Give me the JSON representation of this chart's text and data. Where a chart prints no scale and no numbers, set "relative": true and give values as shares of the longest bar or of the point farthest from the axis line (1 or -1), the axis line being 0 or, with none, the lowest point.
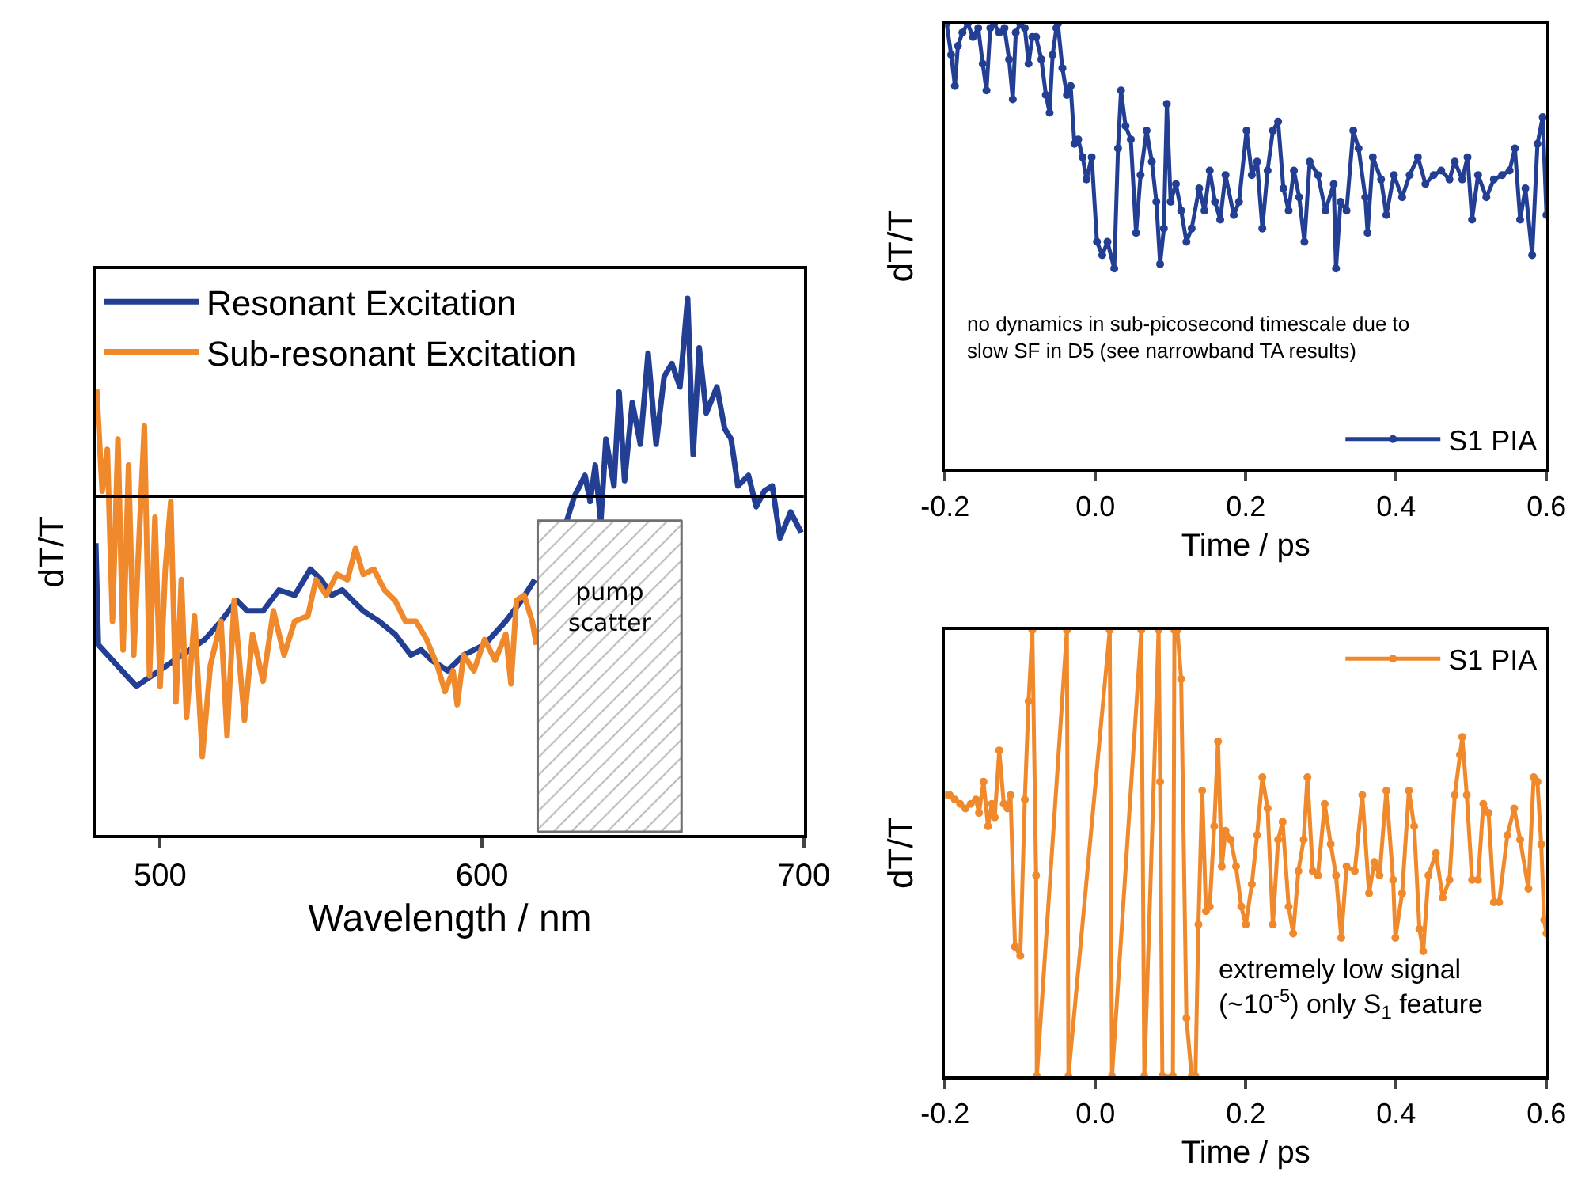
{
  "chart_data": [
    {
      "type": "line",
      "xlabel": "Wavelength / nm",
      "ylabel": "dT/T",
      "relative": true,
      "xlim": [
        480,
        700
      ],
      "xticks": [
        500,
        600,
        700
      ],
      "tick_labels": "x",
      "legend": "top left",
      "marker": "none",
      "x": [
        480.0,
        480.8,
        492.6,
        513.9,
        518.9,
        523.8,
        527.0,
        532.0,
        536.9,
        541.8,
        546.7,
        550.0,
        553.3,
        556.6,
        559.8,
        563.1,
        568.0,
        573.0,
        577.9,
        581.1,
        584.4,
        589.3,
        594.3,
        600.8,
        607.4,
        612.3,
        616.4,
        620.0,
        626.2,
        628.7,
        632.0,
        633.6,
        635.2,
        636.9,
        638.5,
        641.0,
        642.6,
        644.3,
        646.7,
        649.2,
        651.6,
        654.1,
        656.6,
        659.0,
        661.5,
        663.9,
        665.6,
        667.5,
        669.7,
        673.0,
        675.4,
        677.4,
        679.5,
        682.8,
        685.2,
        687.7,
        690.2,
        692.6,
        695.9,
        699.2
      ],
      "series": [
        {
          "name": "Resonant Excitation",
          "color": "#233f94",
          "values": [
            -0.18,
            -0.57,
            -0.73,
            -0.55,
            -0.48,
            -0.4,
            -0.44,
            -0.44,
            -0.36,
            -0.38,
            -0.28,
            -0.32,
            -0.38,
            -0.36,
            -0.4,
            -0.44,
            -0.48,
            -0.53,
            -0.61,
            -0.59,
            -0.63,
            -0.67,
            -0.61,
            -0.57,
            -0.48,
            -0.4,
            -0.32,
            null,
            -0.1,
            0.0,
            0.08,
            -0.02,
            0.12,
            -0.1,
            0.22,
            0.04,
            0.4,
            0.06,
            0.36,
            0.2,
            0.55,
            0.2,
            0.46,
            0.51,
            0.42,
            0.76,
            0.16,
            0.57,
            0.32,
            0.42,
            0.26,
            0.22,
            0.04,
            0.08,
            -0.04,
            0.02,
            0.04,
            -0.16,
            -0.06,
            -0.14
          ]
        },
        {
          "name": "Sub-resonant Excitation",
          "color": "#f0892b",
          "x": [
            480.3,
            482.0,
            483.6,
            485.2,
            486.9,
            488.5,
            490.2,
            491.8,
            493.4,
            495.1,
            496.7,
            498.4,
            500.0,
            501.6,
            503.3,
            504.9,
            506.6,
            508.2,
            510.7,
            513.1,
            515.6,
            518.9,
            520.8,
            523.0,
            526.2,
            528.7,
            532.0,
            535.2,
            538.5,
            541.8,
            545.9,
            548.4,
            551.6,
            554.9,
            558.2,
            560.7,
            563.1,
            566.4,
            569.7,
            573.0,
            576.2,
            579.5,
            582.8,
            586.1,
            588.5,
            591.0,
            592.3,
            594.3,
            597.5,
            600.8,
            604.1,
            607.4,
            609.0,
            610.7,
            613.1,
            615.6,
            616.9
          ],
          "values": [
            0.41,
            0.02,
            0.18,
            -0.48,
            0.22,
            -0.59,
            0.12,
            -0.61,
            -0.18,
            0.27,
            -0.69,
            -0.08,
            -0.73,
            -0.28,
            -0.02,
            -0.79,
            -0.32,
            -0.85,
            -0.46,
            -1.0,
            -0.65,
            -0.48,
            -0.92,
            -0.4,
            -0.86,
            -0.53,
            -0.71,
            -0.44,
            -0.61,
            -0.48,
            -0.46,
            -0.32,
            -0.38,
            -0.3,
            -0.32,
            -0.2,
            -0.3,
            -0.28,
            -0.36,
            -0.4,
            -0.48,
            -0.48,
            -0.55,
            -0.65,
            -0.75,
            -0.67,
            -0.8,
            -0.61,
            -0.67,
            -0.55,
            -0.63,
            -0.53,
            -0.72,
            -0.4,
            -0.38,
            -0.48,
            -0.57
          ]
        }
      ],
      "ref_lines": [
        {
          "axis": "y",
          "value": 0,
          "color": "#000000"
        }
      ],
      "bands": [
        {
          "axis": "x",
          "from": 617.3,
          "to": 662,
          "label": "pump\nscatter",
          "color": "#707070"
        }
      ]
    },
    {
      "type": "line",
      "xlabel": "Time / ps",
      "ylabel": "dT/T",
      "relative": true,
      "xlim": [
        -0.2,
        0.6
      ],
      "xticks": [
        {
          "value": -0.2,
          "label": "-0.2"
        },
        {
          "value": 0,
          "label": "0.0"
        },
        {
          "value": 0.2,
          "label": "0.2"
        },
        {
          "value": 0.4,
          "label": "0.4"
        },
        {
          "value": 0.6,
          "label": "0.6"
        }
      ],
      "tick_labels": "x",
      "legend": "bottom right",
      "marker": "circle",
      "annotations": [
        "no dynamics in sub-picosecond timescale due to\nslow SF in D5 (see narrowband TA results)"
      ],
      "x": [
        -0.198,
        -0.192,
        -0.187,
        -0.183,
        -0.177,
        -0.17,
        -0.163,
        -0.156,
        -0.15,
        -0.145,
        -0.14,
        -0.135,
        -0.128,
        -0.121,
        -0.115,
        -0.11,
        -0.106,
        -0.1,
        -0.094,
        -0.089,
        -0.084,
        -0.079,
        -0.072,
        -0.066,
        -0.061,
        -0.057,
        -0.052,
        -0.05,
        -0.044,
        -0.038,
        -0.033,
        -0.028,
        -0.023,
        -0.017,
        -0.012,
        -0.005,
        0.002,
        0.009,
        0.016,
        0.025,
        0.03,
        0.034,
        0.04,
        0.047,
        0.054,
        0.06,
        0.068,
        0.075,
        0.081,
        0.086,
        0.091,
        0.095,
        0.1,
        0.107,
        0.114,
        0.121,
        0.128,
        0.138,
        0.145,
        0.152,
        0.159,
        0.166,
        0.173,
        0.184,
        0.191,
        0.201,
        0.208,
        0.215,
        0.222,
        0.229,
        0.236,
        0.243,
        0.25,
        0.257,
        0.264,
        0.271,
        0.278,
        0.285,
        0.296,
        0.306,
        0.317,
        0.32,
        0.326,
        0.334,
        0.343,
        0.35,
        0.359,
        0.362,
        0.369,
        0.38,
        0.387,
        0.397,
        0.408,
        0.418,
        0.429,
        0.439,
        0.45,
        0.46,
        0.471,
        0.478,
        0.488,
        0.495,
        0.501,
        0.509,
        0.52,
        0.53,
        0.541,
        0.551,
        0.558,
        0.565,
        0.572,
        0.581,
        0.588,
        0.595,
        0.6
      ],
      "series": [
        {
          "name": "S1 PIA",
          "color": "#233f94",
          "values": [
            1.0,
            0.93,
            0.86,
            0.95,
            0.98,
            1.0,
            0.97,
            0.99,
            0.91,
            0.85,
            0.99,
            1.0,
            0.98,
            0.99,
            0.92,
            0.83,
            0.98,
            1.0,
            0.99,
            0.91,
            0.97,
            0.97,
            0.92,
            0.84,
            0.8,
            0.93,
            0.99,
            1.0,
            0.9,
            0.84,
            0.86,
            0.73,
            0.74,
            0.7,
            0.65,
            0.7,
            0.51,
            0.48,
            0.51,
            0.45,
            0.72,
            0.85,
            0.77,
            0.74,
            0.53,
            0.66,
            0.76,
            0.69,
            0.6,
            0.46,
            0.54,
            0.82,
            0.6,
            0.64,
            0.58,
            0.51,
            0.54,
            0.63,
            0.58,
            0.67,
            0.6,
            0.56,
            0.66,
            0.57,
            0.6,
            0.76,
            0.66,
            0.69,
            0.54,
            0.67,
            0.76,
            0.78,
            0.63,
            0.58,
            0.67,
            0.61,
            0.51,
            0.69,
            0.66,
            0.58,
            0.64,
            0.45,
            0.6,
            0.58,
            0.76,
            0.72,
            0.61,
            0.53,
            0.7,
            0.65,
            0.57,
            0.66,
            0.61,
            0.66,
            0.7,
            0.64,
            0.66,
            0.67,
            0.65,
            0.69,
            0.65,
            0.7,
            0.56,
            0.66,
            0.61,
            0.65,
            0.66,
            0.67,
            0.72,
            0.56,
            0.63,
            0.48,
            0.73,
            0.79,
            0.57
          ]
        }
      ]
    },
    {
      "type": "line",
      "xlabel": "Time / ps",
      "ylabel": "dT/T",
      "relative": true,
      "xlim": [
        -0.2,
        0.6
      ],
      "xticks": [
        {
          "value": -0.2,
          "label": "-0.2"
        },
        {
          "value": 0,
          "label": "0.0"
        },
        {
          "value": 0.2,
          "label": "0.2"
        },
        {
          "value": 0.4,
          "label": "0.4"
        },
        {
          "value": 0.6,
          "label": "0.6"
        }
      ],
      "tick_labels": "x",
      "legend": "top right",
      "marker": "circle",
      "annotations": [
        "extremely low signal\n(~10$^{-5}$) only S$_{1}$ feature"
      ],
      "x": [
        -0.2,
        -0.194,
        -0.187,
        -0.18,
        -0.173,
        -0.166,
        -0.159,
        -0.155,
        -0.149,
        -0.143,
        -0.138,
        -0.134,
        -0.128,
        -0.122,
        -0.117,
        -0.113,
        -0.107,
        -0.1,
        -0.094,
        -0.089,
        -0.084,
        -0.079,
        -0.078,
        -0.038,
        -0.036,
        0.019,
        0.022,
        0.061,
        0.065,
        0.084,
        0.086,
        0.089,
        0.103,
        0.105,
        0.109,
        0.114,
        0.121,
        0.128,
        0.133,
        0.137,
        0.142,
        0.147,
        0.152,
        0.158,
        0.163,
        0.168,
        0.173,
        0.18,
        0.187,
        0.194,
        0.2,
        0.208,
        0.215,
        0.222,
        0.229,
        0.236,
        0.243,
        0.249,
        0.257,
        0.263,
        0.27,
        0.277,
        0.282,
        0.289,
        0.296,
        0.305,
        0.313,
        0.32,
        0.327,
        0.334,
        0.345,
        0.355,
        0.364,
        0.371,
        0.378,
        0.387,
        0.396,
        0.399,
        0.408,
        0.417,
        0.424,
        0.431,
        0.436,
        0.443,
        0.453,
        0.462,
        0.471,
        0.478,
        0.485,
        0.488,
        0.494,
        0.501,
        0.509,
        0.516,
        0.523,
        0.53,
        0.537,
        0.548,
        0.557,
        0.565,
        0.576,
        0.583,
        0.588,
        0.593,
        0.597,
        0.6
      ],
      "series": [
        {
          "name": "S1 PIA",
          "color": "#f0892b",
          "values": [
            0.63,
            0.63,
            0.62,
            0.61,
            0.6,
            0.61,
            0.62,
            0.59,
            0.66,
            0.56,
            0.61,
            0.58,
            0.73,
            0.61,
            0.6,
            0.63,
            0.29,
            0.27,
            0.62,
            0.84,
            1.0,
            0.45,
            0.0,
            1.0,
            0.0,
            1.0,
            0.0,
            1.0,
            0.0,
            1.0,
            0.66,
            0.0,
            0.0,
            1.0,
            1.0,
            0.89,
            0.13,
            0.0,
            0.0,
            0.34,
            0.64,
            0.37,
            0.38,
            0.56,
            0.75,
            0.47,
            0.55,
            0.53,
            0.47,
            0.38,
            0.34,
            0.43,
            0.54,
            0.67,
            0.6,
            0.34,
            0.53,
            0.57,
            0.38,
            0.32,
            0.46,
            0.53,
            0.67,
            0.46,
            0.45,
            0.61,
            0.52,
            0.45,
            0.31,
            0.47,
            0.46,
            0.63,
            0.41,
            0.48,
            0.45,
            0.64,
            0.44,
            0.31,
            0.41,
            0.64,
            0.56,
            0.33,
            0.28,
            0.45,
            0.5,
            0.4,
            0.44,
            0.63,
            0.72,
            0.76,
            0.63,
            0.44,
            0.44,
            0.61,
            0.59,
            0.39,
            0.39,
            0.54,
            0.6,
            0.53,
            0.42,
            0.67,
            0.66,
            0.52,
            0.35,
            0.32
          ]
        }
      ]
    }
  ]
}
